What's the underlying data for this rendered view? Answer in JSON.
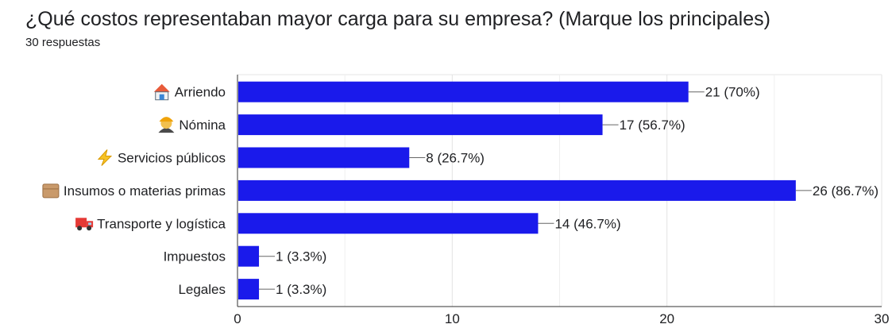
{
  "header": {
    "title": "¿Qué costos representaban mayor carga para su empresa? (Marque los principales)",
    "responses": "30 respuestas"
  },
  "chart_data": {
    "type": "bar",
    "orientation": "horizontal",
    "categories": [
      "Arriendo",
      "Nómina",
      "Servicios públicos",
      "Insumos o materias primas",
      "Transporte y logística",
      "Impuestos",
      "Legales"
    ],
    "category_icons": [
      "house-icon",
      "worker-icon",
      "lightning-icon",
      "package-icon",
      "truck-icon",
      "",
      ""
    ],
    "values": [
      21,
      17,
      8,
      26,
      14,
      1,
      1
    ],
    "data_labels": [
      "21 (70%)",
      "17 (56.7%)",
      "8 (26.7%)",
      "26 (86.7%)",
      "14 (46.7%)",
      "1 (3.3%)",
      "1 (3.3%)"
    ],
    "xlim": [
      0,
      30
    ],
    "xticks": [
      "0",
      "10",
      "20",
      "30"
    ],
    "xtick_values": [
      0,
      10,
      20,
      30
    ],
    "minor_gridlines": [
      5,
      15,
      25
    ],
    "grid": true,
    "bar_color": "#1a1aeb"
  }
}
